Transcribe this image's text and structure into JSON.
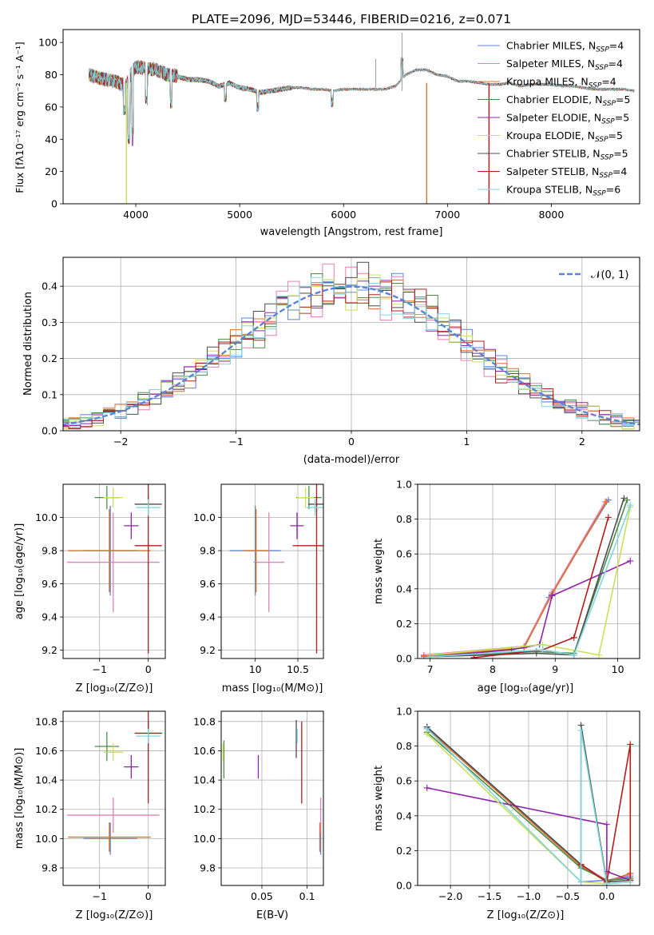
{
  "figure": {
    "title": "PLATE=2096, MJD=53446, FIBERID=0216, z=0.071"
  },
  "legend_entries": [
    {
      "model": "Chabrier MILES",
      "n": "4",
      "color": "#5b84d8"
    },
    {
      "model": "Salpeter MILES",
      "n": "4",
      "color": "#e67fb5"
    },
    {
      "model": "Kroupa MILES",
      "n": "4",
      "color": "#d7732e"
    },
    {
      "model": "Chabrier ELODIE",
      "n": "5",
      "color": "#4a8c4a"
    },
    {
      "model": "Salpeter ELODIE",
      "n": "5",
      "color": "#8e24aa"
    },
    {
      "model": "Kroupa ELODIE",
      "n": "5",
      "color": "#c8e05a"
    },
    {
      "model": "Chabrier STELIB",
      "n": "5",
      "color": "#4d4d4d"
    },
    {
      "model": "Salpeter STELIB",
      "n": "4",
      "color": "#b71c1c"
    },
    {
      "model": "Kroupa STELIB",
      "n": "6",
      "color": "#7fd6dd"
    }
  ],
  "labels": {
    "spec_x": "wavelength [Angstrom, rest frame]",
    "spec_y": "Flux [fλ10⁻¹⁷ erg cm⁻² s⁻¹ A⁻¹]",
    "hist_x": "(data-model)/error",
    "hist_y": "Normed distribution",
    "hist_legend": "𝒩(0, 1)",
    "z_axis": "Z [log₁₀(Z/Z⊙)]",
    "age_axis": "age  [log₁₀(age/yr)]",
    "age_axis_short": "age [log₁₀(age/yr)]",
    "mass_axis": "mass [log₁₀(M/M⊙)]",
    "ebv_axis": "E(B-V)",
    "mass_weight": "mass weight"
  },
  "chart_data": [
    {
      "type": "line",
      "panel": "spectrum",
      "title": "PLATE=2096, MJD=53446, FIBERID=0216, z=0.071",
      "xlabel": "wavelength [Angstrom, rest frame]",
      "ylabel": "Flux [fλ10⁻¹⁷ erg cm⁻² s⁻¹ A⁻¹]",
      "xlim": [
        3300,
        8850
      ],
      "ylim": [
        0,
        108
      ],
      "xticks": [
        4000,
        5000,
        6000,
        7000,
        8000
      ],
      "yticks": [
        0,
        20,
        40,
        60,
        80,
        100
      ],
      "grid": false,
      "legend": "upper right",
      "continuum": {
        "x": [
          3550,
          3700,
          3800,
          3900,
          3950,
          4000,
          4100,
          4200,
          4300,
          4400,
          4500,
          4600,
          4700,
          4800,
          4900,
          5000,
          5100,
          5200,
          5300,
          5400,
          5500,
          5600,
          5700,
          5800,
          5900,
          6000,
          6100,
          6200,
          6300,
          6400,
          6500,
          6600,
          6700,
          6800,
          6900,
          7000,
          7100,
          7200,
          7300,
          7400,
          7500,
          7600,
          7700,
          7800,
          7900,
          8000,
          8100,
          8200,
          8300,
          8400,
          8500,
          8600,
          8700,
          8800
        ],
        "y": [
          80,
          77,
          76,
          73,
          80,
          85,
          84,
          83,
          80,
          79,
          77,
          77,
          76,
          73,
          75,
          72,
          71,
          69,
          70,
          71,
          72,
          72,
          71,
          71,
          70,
          71,
          71,
          71,
          71,
          71,
          73,
          80,
          83,
          83,
          80,
          79,
          76,
          76,
          75,
          74,
          74,
          75,
          73,
          74,
          74,
          74,
          73,
          73,
          72,
          71,
          71,
          71,
          71,
          70
        ]
      },
      "features": [
        {
          "x": 3933,
          "y": 40
        },
        {
          "x": 3968,
          "y": 45
        },
        {
          "x": 3890,
          "y": 58
        },
        {
          "x": 4101,
          "y": 64
        },
        {
          "x": 4340,
          "y": 62
        },
        {
          "x": 4861,
          "y": 66
        },
        {
          "x": 5175,
          "y": 60
        },
        {
          "x": 5890,
          "y": 63
        },
        {
          "x": 6563,
          "y": 88
        }
      ],
      "masked": [
        {
          "x": 3910,
          "y": 0
        },
        {
          "x": 6800,
          "y": 0
        },
        {
          "x": 7400,
          "y": 0
        }
      ]
    },
    {
      "type": "bar",
      "panel": "residual-histogram",
      "xlabel": "(data-model)/error",
      "ylabel": "Normed distribution",
      "xlim": [
        -2.5,
        2.5
      ],
      "ylim": [
        0,
        0.48
      ],
      "xticks": [
        -2,
        -1,
        0,
        1,
        2
      ],
      "yticks": [
        0.0,
        0.1,
        0.2,
        0.3,
        0.4
      ],
      "grid": true,
      "legend": "upper right",
      "bin_width": 0.1,
      "reference": {
        "name": "𝒩(0, 1)",
        "mean": 0,
        "sigma": 1
      }
    },
    {
      "type": "scatter",
      "panel": "age-vs-Z",
      "xlim": [
        -1.75,
        0.35
      ],
      "ylim": [
        9.15,
        10.2
      ],
      "xticks": [
        -1,
        0
      ],
      "yticks": [
        9.2,
        9.4,
        9.6,
        9.8,
        10.0
      ],
      "grid": true,
      "points": [
        {
          "x": -0.78,
          "y": 9.8,
          "xe": 0.55,
          "ye": 0.27
        },
        {
          "x": -0.72,
          "y": 9.73,
          "xe": 0.95,
          "ye": 0.3
        },
        {
          "x": -0.8,
          "y": 9.8,
          "xe": 0.85,
          "ye": 0.25
        },
        {
          "x": -0.85,
          "y": 10.12,
          "xe": 0.25,
          "ye": 0.07
        },
        {
          "x": -0.35,
          "y": 9.95,
          "xe": 0.15,
          "ye": 0.08
        },
        {
          "x": -0.72,
          "y": 10.12,
          "xe": 0.2,
          "ye": 0.06
        },
        {
          "x": 0.0,
          "y": 10.08,
          "xe": 0.28,
          "ye": 0.05
        },
        {
          "x": 0.0,
          "y": 9.83,
          "xe": 0.28,
          "ye": 0.65
        },
        {
          "x": 0.0,
          "y": 10.06,
          "xe": 0.25,
          "ye": 0.05
        }
      ]
    },
    {
      "type": "scatter",
      "panel": "age-vs-mass",
      "xlim": [
        9.6,
        10.8
      ],
      "ylim": [
        9.15,
        10.2
      ],
      "xticks": [
        10.0,
        10.5
      ],
      "yticks": [
        9.2,
        9.4,
        9.6,
        9.8,
        10.0
      ],
      "grid": true,
      "points": [
        {
          "x": 10.0,
          "y": 9.8,
          "xe": 0.3,
          "ye": 0.27
        },
        {
          "x": 10.16,
          "y": 9.73,
          "xe": 0.18,
          "ye": 0.3
        },
        {
          "x": 10.01,
          "y": 9.8,
          "xe": 0.15,
          "ye": 0.25
        },
        {
          "x": 10.63,
          "y": 10.12,
          "xe": 0.15,
          "ye": 0.07
        },
        {
          "x": 10.49,
          "y": 9.95,
          "xe": 0.08,
          "ye": 0.08
        },
        {
          "x": 10.59,
          "y": 10.12,
          "xe": 0.1,
          "ye": 0.06
        },
        {
          "x": 10.72,
          "y": 10.08,
          "xe": 0.1,
          "ye": 0.05
        },
        {
          "x": 10.72,
          "y": 9.83,
          "xe": 0.28,
          "ye": 0.65
        },
        {
          "x": 10.7,
          "y": 10.06,
          "xe": 0.1,
          "ye": 0.05
        }
      ]
    },
    {
      "type": "line",
      "panel": "mass-weight-vs-age",
      "xlim": [
        6.8,
        10.35
      ],
      "ylim": [
        0,
        1.0
      ],
      "xticks": [
        7,
        8,
        9,
        10
      ],
      "yticks": [
        0.0,
        0.2,
        0.4,
        0.6,
        0.8,
        1.0
      ],
      "grid": true,
      "series": [
        {
          "x": [
            6.9,
            8.5,
            8.9,
            9.85
          ],
          "y": [
            0.01,
            0.06,
            0.35,
            0.91
          ]
        },
        {
          "x": [
            6.9,
            8.5,
            8.95,
            9.8
          ],
          "y": [
            0.02,
            0.07,
            0.38,
            0.9
          ]
        },
        {
          "x": [
            6.9,
            8.5,
            8.95,
            9.82
          ],
          "y": [
            0.015,
            0.06,
            0.37,
            0.9
          ]
        },
        {
          "x": [
            7.0,
            8.7,
            9.3,
            10.15
          ],
          "y": [
            0.01,
            0.04,
            0.03,
            0.91
          ]
        },
        {
          "x": [
            7.0,
            8.3,
            8.75,
            8.95,
            10.2
          ],
          "y": [
            0.01,
            0.05,
            0.08,
            0.36,
            0.56
          ]
        },
        {
          "x": [
            7.0,
            8.8,
            9.7,
            10.2
          ],
          "y": [
            0.02,
            0.08,
            0.02,
            0.87
          ]
        },
        {
          "x": [
            7.0,
            8.7,
            9.3,
            10.1
          ],
          "y": [
            0.01,
            0.03,
            0.02,
            0.92
          ]
        },
        {
          "x": [
            7.7,
            8.8,
            9.3,
            9.85
          ],
          "y": [
            0.005,
            0.05,
            0.12,
            0.81
          ]
        },
        {
          "x": [
            7.0,
            8.8,
            9.3,
            10.2
          ],
          "y": [
            0.01,
            0.05,
            0.02,
            0.88
          ]
        }
      ]
    },
    {
      "type": "scatter",
      "panel": "mass-vs-Z",
      "xlim": [
        -1.75,
        0.35
      ],
      "ylim": [
        9.68,
        10.87
      ],
      "xticks": [
        -1,
        0
      ],
      "yticks": [
        9.8,
        10.0,
        10.2,
        10.4,
        10.6,
        10.8
      ],
      "grid": true,
      "points": [
        {
          "x": -0.78,
          "y": 10.0,
          "xe": 0.55,
          "ye": 0.11
        },
        {
          "x": -0.72,
          "y": 10.16,
          "xe": 0.95,
          "ye": 0.12
        },
        {
          "x": -0.8,
          "y": 10.01,
          "xe": 0.85,
          "ye": 0.1
        },
        {
          "x": -0.85,
          "y": 10.63,
          "xe": 0.25,
          "ye": 0.1
        },
        {
          "x": -0.35,
          "y": 10.49,
          "xe": 0.15,
          "ye": 0.08
        },
        {
          "x": -0.72,
          "y": 10.59,
          "xe": 0.2,
          "ye": 0.06
        },
        {
          "x": 0.0,
          "y": 10.72,
          "xe": 0.28,
          "ye": 0.08
        },
        {
          "x": 0.0,
          "y": 10.72,
          "xe": 0.28,
          "ye": 0.48
        },
        {
          "x": 0.0,
          "y": 10.7,
          "xe": 0.25,
          "ye": 0.05
        }
      ]
    },
    {
      "type": "scatter",
      "panel": "mass-vs-EBV",
      "xlim": [
        0.005,
        0.118
      ],
      "ylim": [
        9.68,
        10.87
      ],
      "xticks": [
        0.05,
        0.1
      ],
      "yticks": [
        9.8,
        10.0,
        10.2,
        10.4,
        10.6,
        10.8
      ],
      "grid": true,
      "points": [
        {
          "x": 0.115,
          "y": 10.0,
          "ye": 0.11
        },
        {
          "x": 0.115,
          "y": 10.16,
          "ye": 0.12
        },
        {
          "x": 0.114,
          "y": 10.01,
          "ye": 0.1
        },
        {
          "x": 0.008,
          "y": 10.54,
          "ye": 0.13
        },
        {
          "x": 0.046,
          "y": 10.49,
          "ye": 0.08
        },
        {
          "x": 0.007,
          "y": 10.59,
          "ye": 0.06
        },
        {
          "x": 0.088,
          "y": 10.68,
          "ye": 0.13
        },
        {
          "x": 0.094,
          "y": 10.52,
          "ye": 0.28
        },
        {
          "x": 0.089,
          "y": 10.7,
          "ye": 0.05
        }
      ]
    },
    {
      "type": "line",
      "panel": "mass-weight-vs-Z",
      "xlim": [
        -2.42,
        0.42
      ],
      "ylim": [
        0,
        1.0
      ],
      "xticks": [
        -2.0,
        -1.5,
        -1.0,
        -0.5,
        0.0
      ],
      "yticks": [
        0.0,
        0.2,
        0.4,
        0.6,
        0.8,
        1.0
      ],
      "grid": true,
      "series": [
        {
          "x": [
            -2.3,
            -0.33,
            -0.33,
            0.0,
            0.3
          ],
          "y": [
            0.91,
            0.12,
            0.02,
            0.03,
            0.05
          ]
        },
        {
          "x": [
            -2.3,
            -0.33,
            0.0,
            0.3
          ],
          "y": [
            0.9,
            0.12,
            0.03,
            0.06
          ]
        },
        {
          "x": [
            -2.3,
            -0.33,
            0.0,
            0.3
          ],
          "y": [
            0.9,
            0.11,
            0.02,
            0.07
          ]
        },
        {
          "x": [
            -2.3,
            -0.33,
            0.0,
            0.3
          ],
          "y": [
            0.88,
            0.1,
            0.03,
            0.04
          ]
        },
        {
          "x": [
            -2.3,
            0.0,
            0.0,
            0.3
          ],
          "y": [
            0.56,
            0.35,
            0.08,
            0.03
          ]
        },
        {
          "x": [
            -2.3,
            -0.33,
            0.0,
            0.3
          ],
          "y": [
            0.87,
            0.02,
            0.01,
            0.02
          ]
        },
        {
          "x": [
            -2.3,
            -0.33,
            -0.33,
            0.0,
            0.3
          ],
          "y": [
            0.91,
            0.12,
            0.92,
            0.02,
            0.03
          ]
        },
        {
          "x": [
            -0.33,
            0.0,
            0.3,
            0.3
          ],
          "y": [
            0.12,
            0.02,
            0.81,
            0.03
          ]
        },
        {
          "x": [
            -2.3,
            -0.33,
            -0.33,
            0.0,
            0.3
          ],
          "y": [
            0.9,
            0.02,
            0.89,
            0.01,
            0.02
          ]
        }
      ]
    }
  ]
}
